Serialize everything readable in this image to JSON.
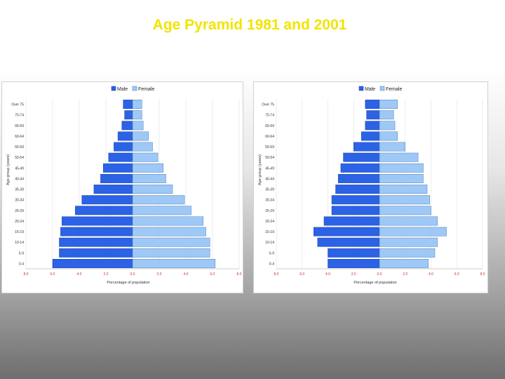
{
  "slide": {
    "title": "Age Pyramid 1981 and 2001"
  },
  "chart_data": [
    {
      "type": "bar",
      "orientation": "horizontal-pyramid",
      "legend": [
        "Male",
        "Female"
      ],
      "legend_position": "top",
      "colors": {
        "male": "#2b62e6",
        "female": "#9ec8f6"
      },
      "categories": [
        "0-4",
        "5-9",
        "10-14",
        "15-19",
        "20-24",
        "25-29",
        "30-34",
        "35-39",
        "40-44",
        "45-49",
        "50-54",
        "55-59",
        "60-64",
        "65-69",
        "70-74",
        "Over 75"
      ],
      "series": [
        {
          "name": "Male",
          "values": [
            6.0,
            5.5,
            5.5,
            5.4,
            5.3,
            4.3,
            3.8,
            2.9,
            2.4,
            2.2,
            1.8,
            1.4,
            1.1,
            0.8,
            0.6,
            0.7
          ]
        },
        {
          "name": "Female",
          "values": [
            6.2,
            5.8,
            5.8,
            5.5,
            5.3,
            4.4,
            3.9,
            3.0,
            2.5,
            2.3,
            1.9,
            1.5,
            1.2,
            0.8,
            0.7,
            0.7
          ]
        }
      ],
      "xlim": [
        -8.0,
        8.0
      ],
      "x_ticks": [
        "8.0",
        "6.0",
        "4.0",
        "2.0",
        "0.0",
        "2.0",
        "4.0",
        "6.0",
        "8.0"
      ],
      "xlabel": "Percentage of population",
      "ylabel": "Age group (years)",
      "grid": true
    },
    {
      "type": "bar",
      "orientation": "horizontal-pyramid",
      "legend": [
        "Male",
        "Female"
      ],
      "legend_position": "top",
      "colors": {
        "male": "#2b62e6",
        "female": "#9ec8f6"
      },
      "categories": [
        "0-4",
        "5-9",
        "10-14",
        "15-19",
        "20-24",
        "25-29",
        "30-34",
        "35-39",
        "40-44",
        "45-49",
        "50-54",
        "55-59",
        "60-64",
        "65-69",
        "70-74",
        "Over 75"
      ],
      "series": [
        {
          "name": "Male",
          "values": [
            4.0,
            4.0,
            4.8,
            5.1,
            4.3,
            3.7,
            3.7,
            3.4,
            3.2,
            3.0,
            2.8,
            2.0,
            1.4,
            1.1,
            1.0,
            1.1
          ]
        },
        {
          "name": "Female",
          "values": [
            3.8,
            4.3,
            4.5,
            5.2,
            4.5,
            4.0,
            3.9,
            3.7,
            3.4,
            3.4,
            3.0,
            2.0,
            1.4,
            1.2,
            1.1,
            1.4
          ]
        }
      ],
      "xlim": [
        -8.0,
        8.0
      ],
      "x_ticks": [
        "8.0",
        "6.0",
        "4.0",
        "2.0",
        "0.0",
        "2.0",
        "4.0",
        "6.0",
        "8.0"
      ],
      "xlabel": "Percentage of population",
      "ylabel": "Age group (years)",
      "grid": true
    }
  ]
}
